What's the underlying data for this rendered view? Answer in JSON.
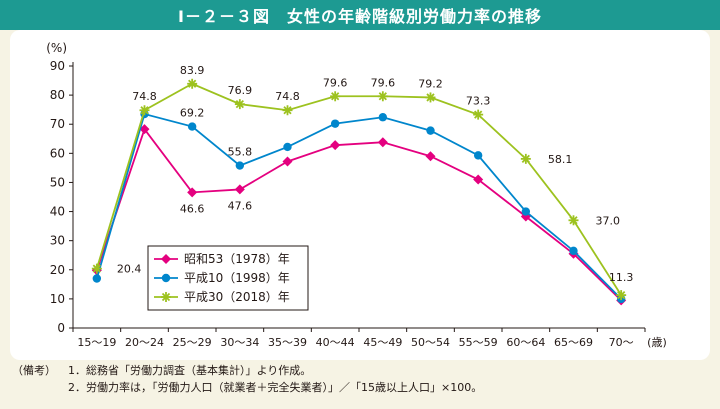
{
  "title": "Ⅰ－２－３図　女性の年齢階級別労働力率の推移",
  "notes": {
    "head": "（備考）",
    "items": [
      {
        "num": "1．",
        "text": "総務省「労働力調査（基本集計）」より作成。"
      },
      {
        "num": "2．",
        "text": "労働力率は，「労働力人口（就業者＋完全失業者）」／「15歳以上人口」×100。"
      }
    ]
  },
  "chart_data": {
    "type": "line",
    "ylabel": "(%)",
    "xunit": "(歳)",
    "ylim": [
      0,
      90
    ],
    "yticks": [
      0,
      10,
      20,
      30,
      40,
      50,
      60,
      70,
      80,
      90
    ],
    "grid": false,
    "legend_position": "bottom-left",
    "categories": [
      "15～19",
      "20～24",
      "25～29",
      "30～34",
      "35～39",
      "40～44",
      "45～49",
      "50～54",
      "55～59",
      "60～64",
      "65～69",
      "70～"
    ],
    "series": [
      {
        "name": "昭和53（1978）年",
        "color": "#e4007f",
        "marker": "diamond",
        "values": [
          19.8,
          68.3,
          46.6,
          47.6,
          57.2,
          62.8,
          63.8,
          59.0,
          51.0,
          38.3,
          25.5,
          9.5
        ],
        "labels": [
          null,
          null,
          "46.6",
          "47.6",
          null,
          null,
          null,
          null,
          null,
          null,
          null,
          null
        ]
      },
      {
        "name": "平成10（1998）年",
        "color": "#0086cc",
        "marker": "circle",
        "values": [
          17.0,
          73.5,
          69.2,
          55.8,
          62.2,
          70.2,
          72.4,
          67.8,
          59.3,
          40.0,
          26.5,
          10.0
        ],
        "labels": [
          null,
          null,
          "69.2",
          "55.8",
          null,
          null,
          null,
          null,
          null,
          null,
          null,
          null
        ]
      },
      {
        "name": "平成30（2018）年",
        "color": "#9dc21f",
        "marker": "star",
        "values": [
          20.4,
          74.8,
          83.9,
          76.9,
          74.8,
          79.6,
          79.6,
          79.2,
          73.3,
          58.1,
          37.0,
          11.3
        ],
        "labels": [
          "20.4",
          "74.8",
          "83.9",
          "76.9",
          "74.8",
          "79.6",
          "79.6",
          "79.2",
          "73.3",
          "58.1",
          "37.0",
          "11.3"
        ]
      }
    ]
  }
}
